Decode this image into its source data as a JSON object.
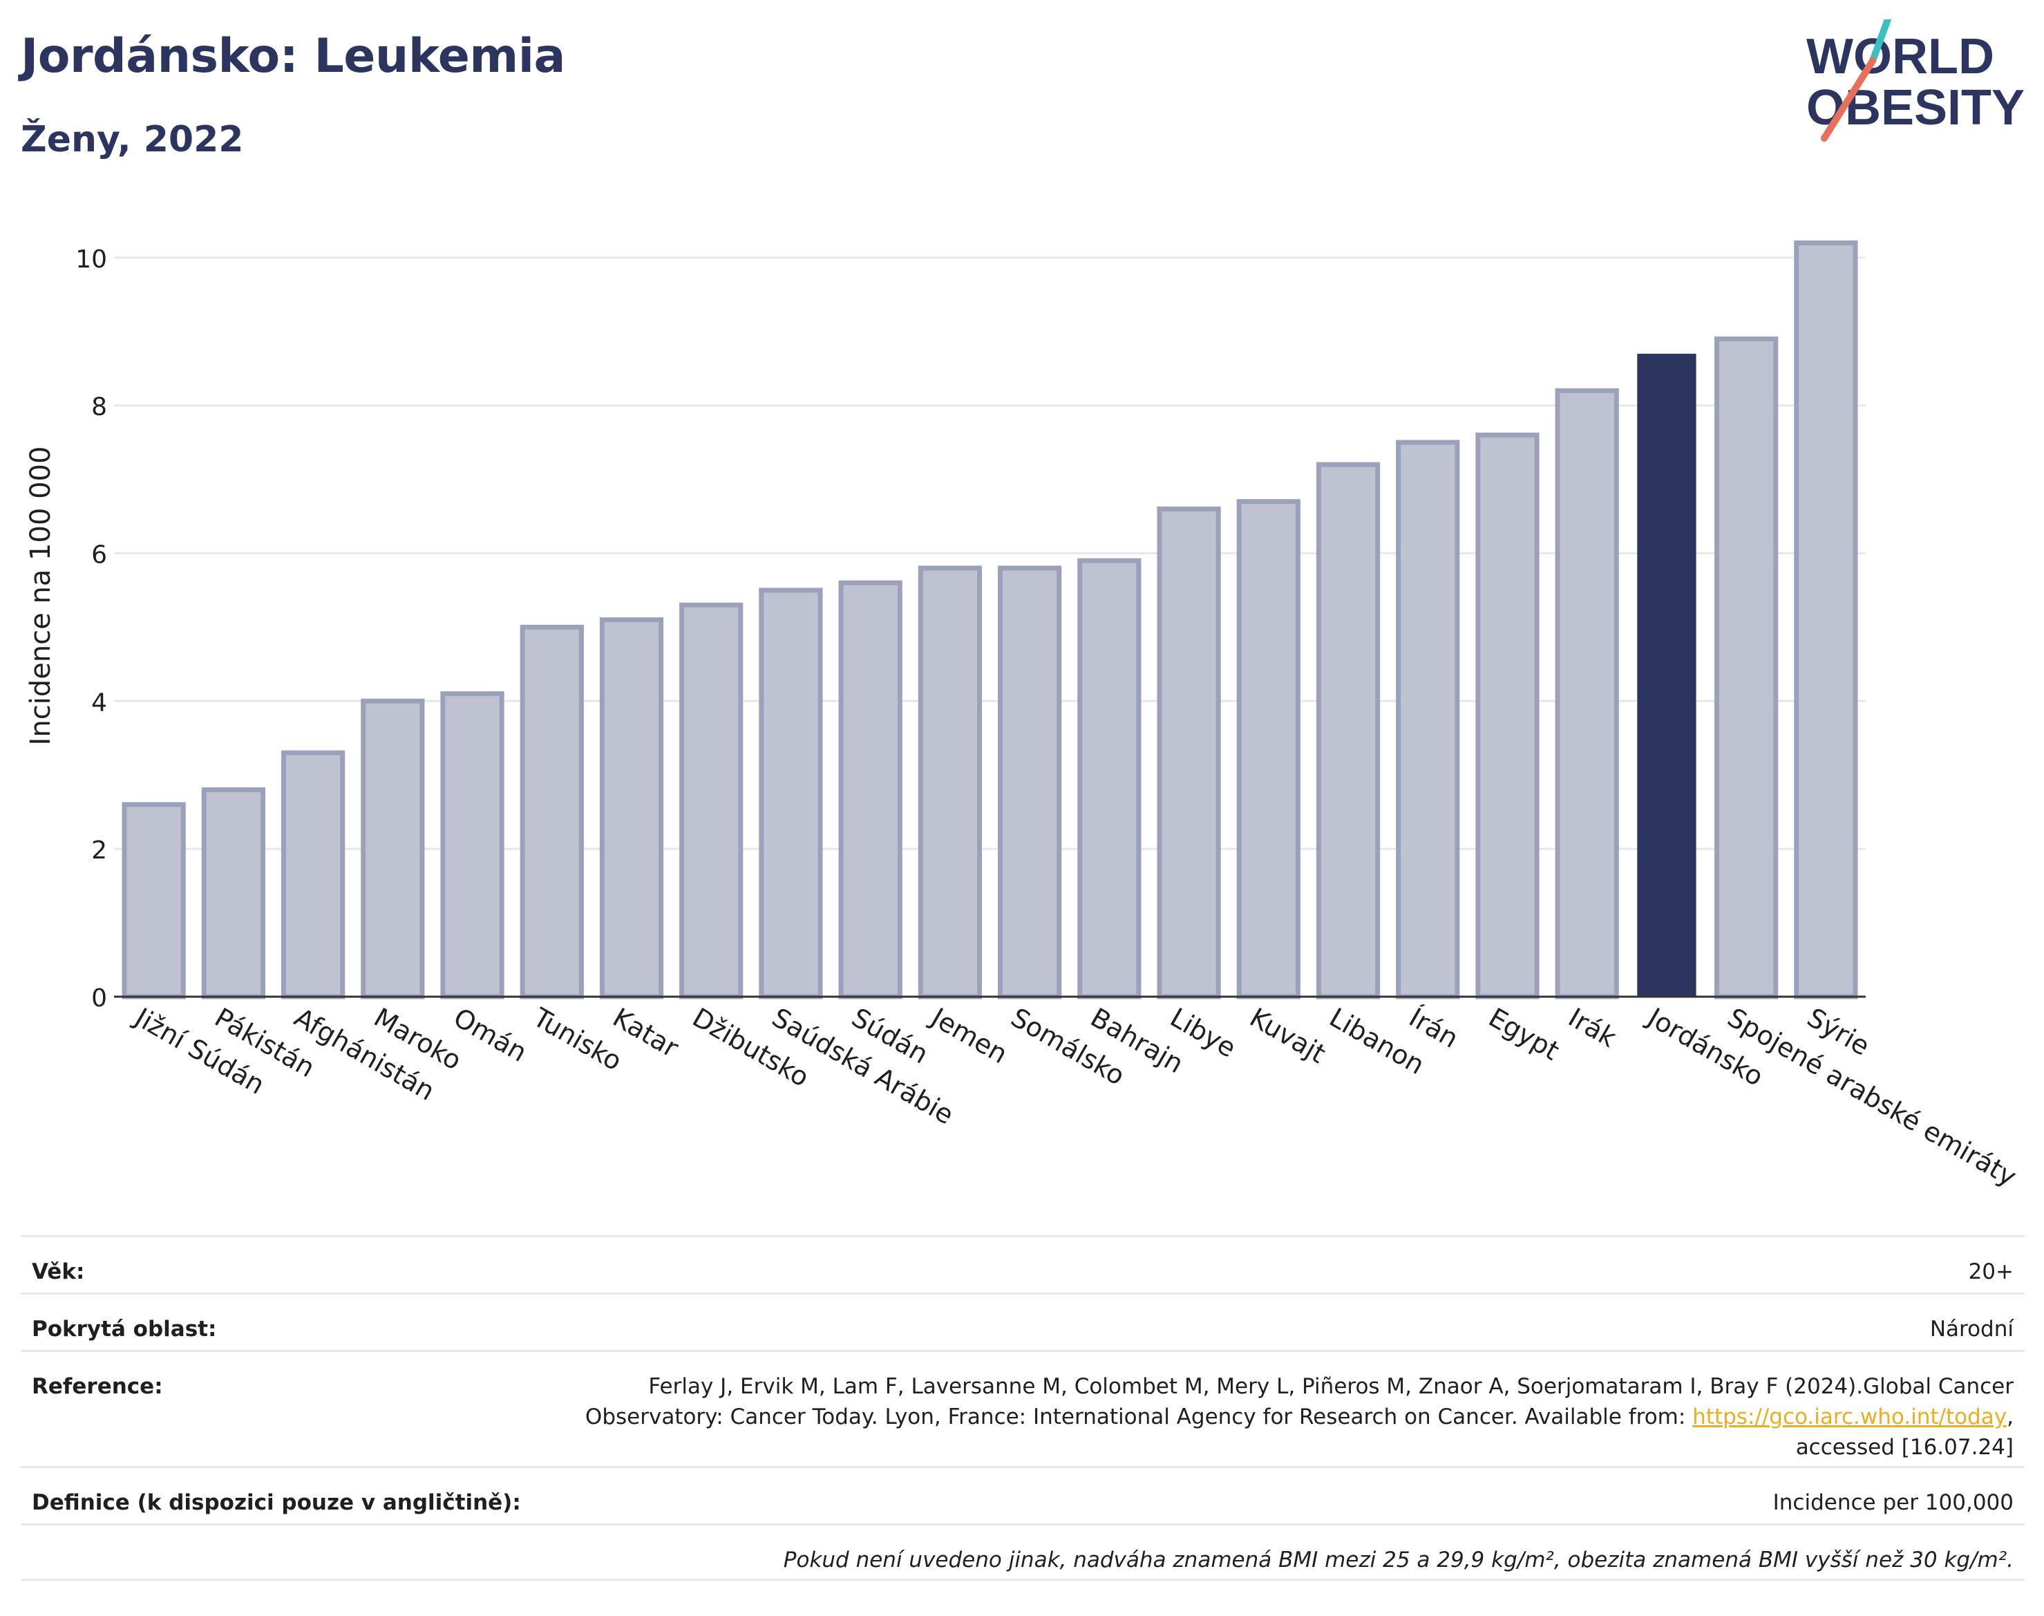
{
  "header": {
    "title": "Jordánsko: Leukemia",
    "subtitle": "Ženy, 2022",
    "logo_line1": "WORLD",
    "logo_line2": "OBESITY"
  },
  "colors": {
    "bar": "#bfc2d0",
    "bar_border": "#9ca1bb",
    "highlight": "#2c3560",
    "grid": "#e6e8ee",
    "axis": "#333333",
    "logo_text": "#2c3560",
    "logo_teal": "#3bbfbf",
    "logo_coral": "#e8705a"
  },
  "chart_data": {
    "type": "bar",
    "ylabel": "Incidence na 100 000",
    "xlabel": "",
    "ylim": [
      0,
      10.4
    ],
    "yticks": [
      0,
      2,
      4,
      6,
      8,
      10
    ],
    "grid": true,
    "highlight": "Jordánsko",
    "categories": [
      "Jižní Súdán",
      "Pákistán",
      "Afghánistán",
      "Maroko",
      "Omán",
      "Tunisko",
      "Katar",
      "Džibutsko",
      "Saúdská Arábie",
      "Súdán",
      "Jemen",
      "Somálsko",
      "Bahrajn",
      "Libye",
      "Kuvajt",
      "Libanon",
      "Írán",
      "Egypt",
      "Irák",
      "Jordánsko",
      "Spojené arabské emiráty",
      "Sýrie"
    ],
    "values": [
      2.6,
      2.8,
      3.3,
      4.0,
      4.1,
      5.0,
      5.1,
      5.3,
      5.5,
      5.6,
      5.8,
      5.8,
      5.9,
      6.6,
      6.7,
      7.2,
      7.5,
      7.6,
      8.2,
      8.7,
      8.9,
      10.2
    ]
  },
  "meta": {
    "age_label": "Věk:",
    "age_value": "20+",
    "coverage_label": "Pokrytá oblast:",
    "coverage_value": "Národní",
    "reference_label": "Reference:",
    "reference_text_1": "Ferlay J, Ervik M, Lam F, Laversanne M, Colombet M, Mery L, Piñeros M, Znaor A, Soerjomataram I, Bray F (2024).Global Cancer Observatory: Cancer Today. Lyon, France: International Agency for Research on Cancer. Available from: ",
    "reference_link": "https://gco.iarc.who.int/today",
    "reference_text_2": ", accessed [16.07.24]",
    "definition_label": "Definice (k dispozici pouze v angličtině):",
    "definition_value": "Incidence per 100,000",
    "footnote": "Pokud není uvedeno jinak, nadváha znamená BMI mezi 25 a 29,9 kg/m², obezita znamená BMI vyšší než 30 kg/m²."
  }
}
